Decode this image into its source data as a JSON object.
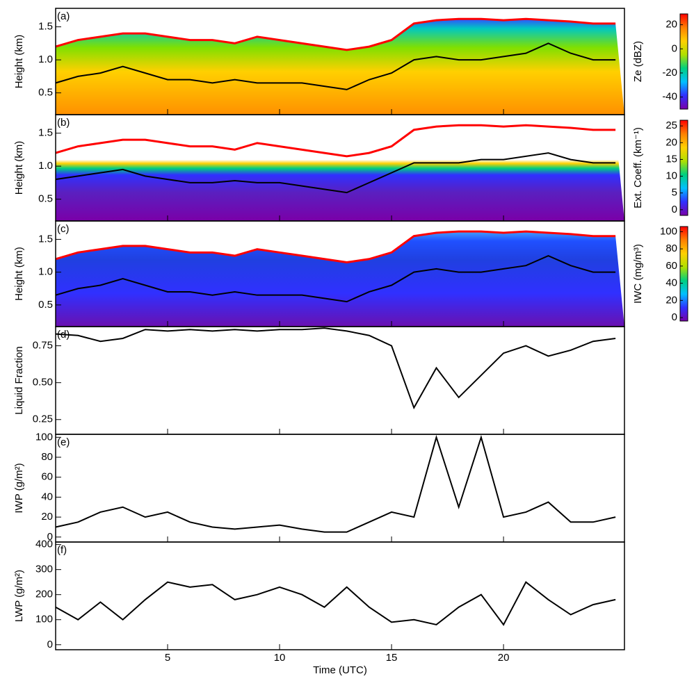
{
  "chart_data": [
    {
      "type": "line",
      "panel_label": "(a)",
      "ylabel": "Height (km)",
      "x": [
        0,
        1,
        2,
        3,
        4,
        5,
        6,
        7,
        8,
        9,
        10,
        11,
        12,
        13,
        14,
        15,
        16,
        17,
        18,
        19,
        20,
        21,
        22,
        23,
        24,
        25
      ],
      "xlim": [
        0,
        25.4
      ],
      "xticks": [
        5,
        10,
        15,
        20
      ],
      "ylim": [
        0.17,
        1.78
      ],
      "yticks": [
        0.5,
        {
          "value": 1,
          "label": "1.0"
        },
        1.5
      ],
      "series": [
        {
          "color": "#ff0000",
          "values": [
            1.2,
            1.3,
            1.35,
            1.4,
            1.4,
            1.35,
            1.3,
            1.3,
            1.25,
            1.35,
            1.3,
            1.25,
            1.2,
            1.15,
            1.2,
            1.3,
            1.55,
            1.6,
            1.62,
            1.62,
            1.6,
            1.62,
            1.6,
            1.58,
            1.55,
            1.55
          ]
        },
        {
          "color": "#000000",
          "values": [
            0.65,
            0.75,
            0.8,
            0.9,
            0.8,
            0.7,
            0.7,
            0.65,
            0.7,
            0.65,
            0.65,
            0.65,
            0.6,
            0.55,
            0.7,
            0.8,
            1.0,
            1.05,
            1.0,
            1.0,
            1.05,
            1.1,
            1.25,
            1.1,
            1.0,
            1.0
          ]
        }
      ],
      "colorbar": {
        "label": "Ze (dBZ)",
        "lim": [
          -50,
          29
        ],
        "ticks": [
          -40,
          -20,
          0,
          20
        ],
        "colors": [
          "#7a00a8",
          "#3030ff",
          "#00c0ff",
          "#00d080",
          "#b0e000",
          "#ffd000",
          "#ff8000",
          "#ff0000"
        ]
      }
    },
    {
      "type": "line",
      "panel_label": "(b)",
      "ylabel": "Height (km)",
      "x": [
        0,
        1,
        2,
        3,
        4,
        5,
        6,
        7,
        8,
        9,
        10,
        11,
        12,
        13,
        14,
        15,
        16,
        17,
        18,
        19,
        20,
        21,
        22,
        23,
        24,
        25
      ],
      "xlim": [
        0,
        25.4
      ],
      "xticks": [
        5,
        10,
        15,
        20
      ],
      "ylim": [
        0.17,
        1.78
      ],
      "yticks": [
        0.5,
        {
          "value": 1,
          "label": "1.0"
        },
        1.5
      ],
      "series": [
        {
          "color": "#ff0000",
          "values": [
            1.2,
            1.3,
            1.35,
            1.4,
            1.4,
            1.35,
            1.3,
            1.3,
            1.25,
            1.35,
            1.3,
            1.25,
            1.2,
            1.15,
            1.2,
            1.3,
            1.55,
            1.6,
            1.62,
            1.62,
            1.6,
            1.62,
            1.6,
            1.58,
            1.55,
            1.55
          ]
        },
        {
          "color": "#000000",
          "values": [
            0.8,
            0.85,
            0.9,
            0.95,
            0.85,
            0.8,
            0.75,
            0.75,
            0.78,
            0.75,
            0.75,
            0.7,
            0.65,
            0.6,
            0.75,
            0.9,
            1.05,
            1.05,
            1.05,
            1.1,
            1.1,
            1.15,
            1.2,
            1.1,
            1.05,
            1.05
          ]
        }
      ],
      "colorbar": {
        "label": "Ext. Coeff. (km⁻¹)",
        "lim": [
          -1.7,
          26.7
        ],
        "ticks": [
          0,
          5,
          10,
          15,
          20,
          25
        ],
        "colors": [
          "#7a00a8",
          "#3030ff",
          "#00c0ff",
          "#00d080",
          "#b0e000",
          "#ffd000",
          "#ff8000",
          "#ff0000"
        ]
      }
    },
    {
      "type": "line",
      "panel_label": "(c)",
      "ylabel": "Height (km)",
      "x": [
        0,
        1,
        2,
        3,
        4,
        5,
        6,
        7,
        8,
        9,
        10,
        11,
        12,
        13,
        14,
        15,
        16,
        17,
        18,
        19,
        20,
        21,
        22,
        23,
        24,
        25
      ],
      "xlim": [
        0,
        25.4
      ],
      "xticks": [
        5,
        10,
        15,
        20
      ],
      "ylim": [
        0.17,
        1.78
      ],
      "yticks": [
        0.5,
        {
          "value": 1,
          "label": "1.0"
        },
        1.5
      ],
      "series": [
        {
          "color": "#ff0000",
          "values": [
            1.2,
            1.3,
            1.35,
            1.4,
            1.4,
            1.35,
            1.3,
            1.3,
            1.25,
            1.35,
            1.3,
            1.25,
            1.2,
            1.15,
            1.2,
            1.3,
            1.55,
            1.6,
            1.62,
            1.62,
            1.6,
            1.62,
            1.6,
            1.58,
            1.55,
            1.55
          ]
        },
        {
          "color": "#000000",
          "values": [
            0.65,
            0.75,
            0.8,
            0.9,
            0.8,
            0.7,
            0.7,
            0.65,
            0.7,
            0.65,
            0.65,
            0.65,
            0.6,
            0.55,
            0.7,
            0.8,
            1.0,
            1.05,
            1.0,
            1.0,
            1.05,
            1.1,
            1.25,
            1.1,
            1.0,
            1.0
          ]
        }
      ],
      "colorbar": {
        "label": "IWC (mg/m³)",
        "lim": [
          -4,
          106
        ],
        "ticks": [
          0,
          20,
          40,
          60,
          80,
          100
        ],
        "colors": [
          "#7a00a8",
          "#3030ff",
          "#00c0ff",
          "#00d080",
          "#b0e000",
          "#ffd000",
          "#ff8000",
          "#ff0000"
        ]
      }
    },
    {
      "type": "line",
      "panel_label": "(d)",
      "ylabel": "Liquid Fraction",
      "x": [
        0,
        1,
        2,
        3,
        4,
        5,
        6,
        7,
        8,
        9,
        10,
        11,
        12,
        13,
        14,
        15,
        16,
        17,
        18,
        19,
        20,
        21,
        22,
        23,
        24,
        25
      ],
      "xlim": [
        0,
        25.4
      ],
      "xticks": [
        5,
        10,
        15,
        20
      ],
      "ylim": [
        0.15,
        0.88
      ],
      "yticks": [
        0.25,
        {
          "value": 0.5,
          "label": "0.50"
        },
        0.75
      ],
      "series": [
        {
          "color": "#000000",
          "values": [
            0.83,
            0.82,
            0.78,
            0.8,
            0.86,
            0.85,
            0.86,
            0.85,
            0.86,
            0.85,
            0.86,
            0.86,
            0.87,
            0.85,
            0.82,
            0.75,
            0.33,
            0.6,
            0.4,
            0.55,
            0.7,
            0.75,
            0.68,
            0.72,
            0.78,
            0.8
          ]
        }
      ]
    },
    {
      "type": "line",
      "panel_label": "(e)",
      "ylabel": "IWP (g/m²)",
      "x": [
        0,
        1,
        2,
        3,
        4,
        5,
        6,
        7,
        8,
        9,
        10,
        11,
        12,
        13,
        14,
        15,
        16,
        17,
        18,
        19,
        20,
        21,
        22,
        23,
        24,
        25
      ],
      "xlim": [
        0,
        25.4
      ],
      "xticks": [
        5,
        10,
        15,
        20
      ],
      "ylim": [
        -5,
        103
      ],
      "yticks": [
        0,
        20,
        40,
        60,
        80,
        100
      ],
      "series": [
        {
          "color": "#000000",
          "values": [
            10,
            15,
            25,
            30,
            20,
            25,
            15,
            10,
            8,
            10,
            12,
            8,
            5,
            5,
            15,
            25,
            20,
            100,
            30,
            100,
            20,
            25,
            35,
            15,
            15,
            20
          ]
        }
      ]
    },
    {
      "type": "line",
      "panel_label": "(f)",
      "ylabel": "LWP (g/m²)",
      "xlabel": "Time (UTC)",
      "x": [
        0,
        1,
        2,
        3,
        4,
        5,
        6,
        7,
        8,
        9,
        10,
        11,
        12,
        13,
        14,
        15,
        16,
        17,
        18,
        19,
        20,
        21,
        22,
        23,
        24,
        25
      ],
      "xlim": [
        0,
        25.4
      ],
      "xticks": [
        5,
        10,
        15,
        20
      ],
      "ylim": [
        -20,
        410
      ],
      "yticks": [
        0,
        100,
        200,
        300,
        400
      ],
      "series": [
        {
          "color": "#000000",
          "values": [
            150,
            100,
            170,
            100,
            180,
            250,
            230,
            240,
            180,
            200,
            230,
            200,
            150,
            230,
            150,
            90,
            100,
            80,
            150,
            200,
            80,
            250,
            180,
            120,
            160,
            180
          ]
        }
      ]
    }
  ]
}
